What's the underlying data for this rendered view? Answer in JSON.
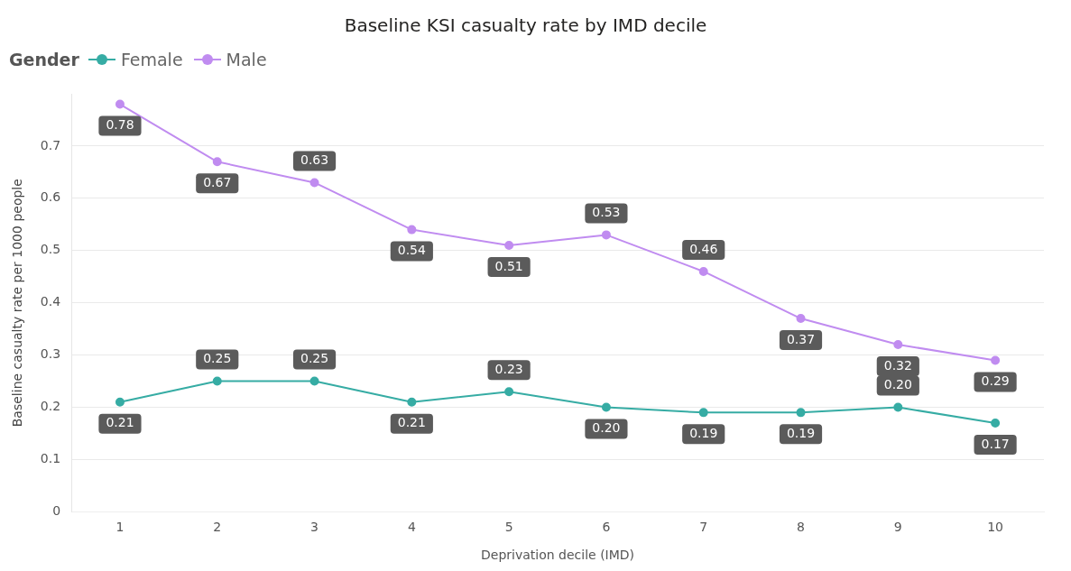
{
  "chart_data": {
    "type": "line",
    "title": "Baseline KSI casualty rate by IMD decile",
    "xlabel": "Deprivation decile (IMD)",
    "ylabel": "Baseline casualty rate per 1000 people",
    "legend_title": "Gender",
    "categories": [
      "1",
      "2",
      "3",
      "4",
      "5",
      "6",
      "7",
      "8",
      "9",
      "10"
    ],
    "series": [
      {
        "name": "Female",
        "color": "#36aca4",
        "values": [
          0.21,
          0.25,
          0.25,
          0.21,
          0.23,
          0.2,
          0.19,
          0.19,
          0.2,
          0.17
        ],
        "value_labels": [
          "0.21",
          "0.25",
          "0.25",
          "0.21",
          "0.23",
          "0.20",
          "0.19",
          "0.19",
          "0.20",
          "0.17"
        ]
      },
      {
        "name": "Male",
        "color": "#c08cf0",
        "values": [
          0.78,
          0.67,
          0.63,
          0.54,
          0.51,
          0.53,
          0.46,
          0.37,
          0.32,
          0.29
        ],
        "value_labels": [
          "0.78",
          "0.67",
          "0.63",
          "0.54",
          "0.51",
          "0.53",
          "0.46",
          "0.37",
          "0.32",
          "0.29"
        ]
      }
    ],
    "ylim": [
      0,
      0.8
    ],
    "yticks": [
      0,
      0.1,
      0.2,
      0.3,
      0.4,
      0.5,
      0.6,
      0.7
    ],
    "grid": "y",
    "legend": "top left",
    "marker": "circle",
    "line_style": "solid"
  }
}
